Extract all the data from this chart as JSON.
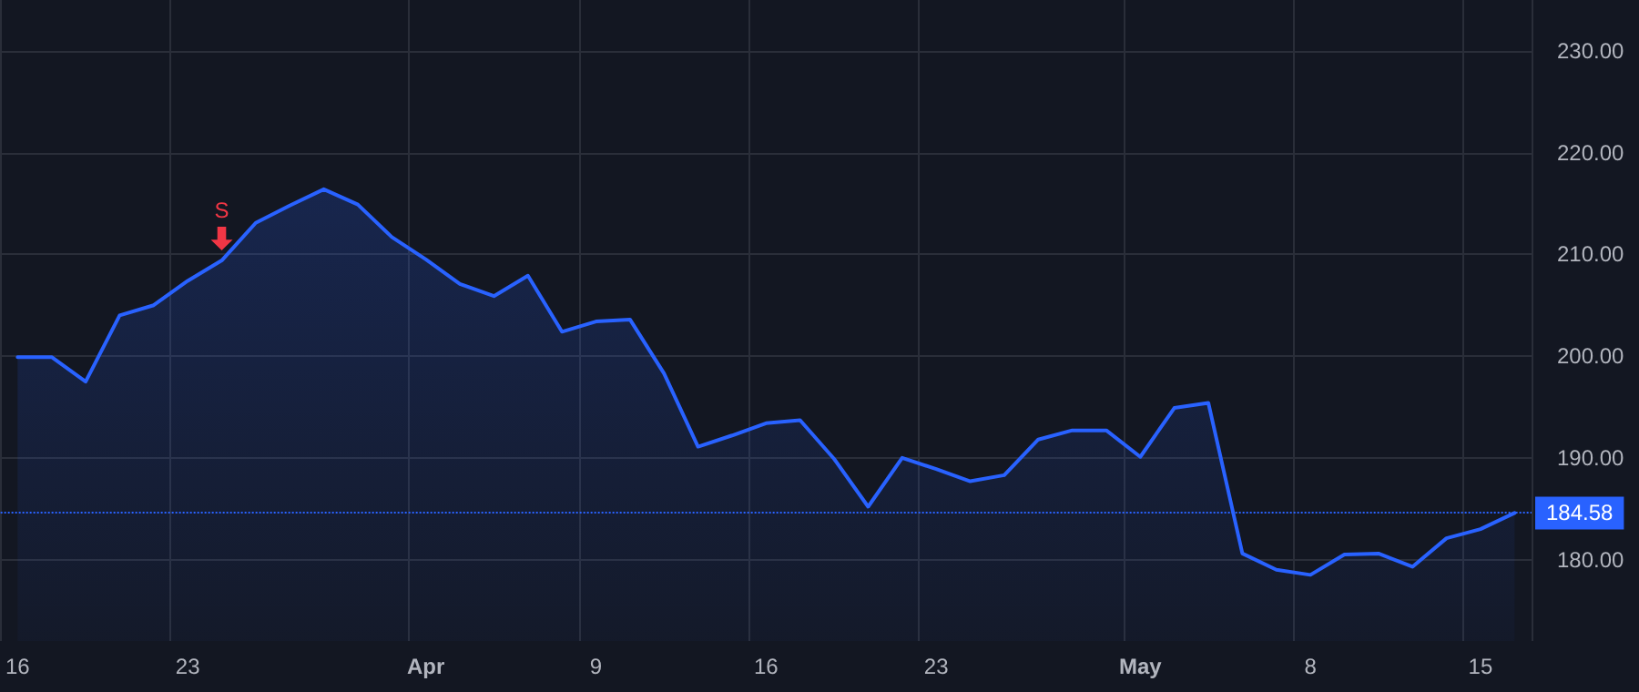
{
  "chart_data": {
    "type": "area",
    "categories": [
      "16",
      null,
      null,
      null,
      null,
      "23",
      null,
      null,
      null,
      null,
      null,
      null,
      "Apr",
      null,
      null,
      null,
      null,
      "9",
      null,
      null,
      null,
      null,
      "16",
      null,
      null,
      null,
      null,
      "23",
      null,
      null,
      null,
      null,
      null,
      "May",
      null,
      null,
      null,
      null,
      "8",
      null,
      null,
      null,
      null,
      "15",
      null
    ],
    "series": [
      {
        "color": "#2962ff",
        "values": [
          199.9,
          199.9,
          197.5,
          204.0,
          205.0,
          207.4,
          209.4,
          213.1,
          214.8,
          216.4,
          214.9,
          211.7,
          209.5,
          207.1,
          205.9,
          207.9,
          202.4,
          203.4,
          203.6,
          198.3,
          191.1,
          192.2,
          193.4,
          193.7,
          189.9,
          185.2,
          190.0,
          188.9,
          187.7,
          188.3,
          191.8,
          192.7,
          192.7,
          190.1,
          194.9,
          195.4,
          180.6,
          179.0,
          178.5,
          180.5,
          180.6,
          179.3,
          182.1,
          183.0,
          184.58
        ]
      }
    ],
    "ylim": [
      172,
      235
    ],
    "yticks": [
      {
        "value": 180,
        "label": "180.00"
      },
      {
        "value": 190,
        "label": "190.00"
      },
      {
        "value": 200,
        "label": "200.00"
      },
      {
        "value": 210,
        "label": "210.00"
      },
      {
        "value": 220,
        "label": "220.00"
      },
      {
        "value": 230,
        "label": "230.00"
      }
    ],
    "ref_lines": [
      {
        "axis": "y",
        "value": 184.58,
        "label": "184.58",
        "color": "#2962ff",
        "line_style": "dotted"
      }
    ],
    "annotations": [
      {
        "text": "S",
        "y": 209.4
      }
    ],
    "grid": true,
    "marker": "none",
    "line_style": "solid"
  }
}
